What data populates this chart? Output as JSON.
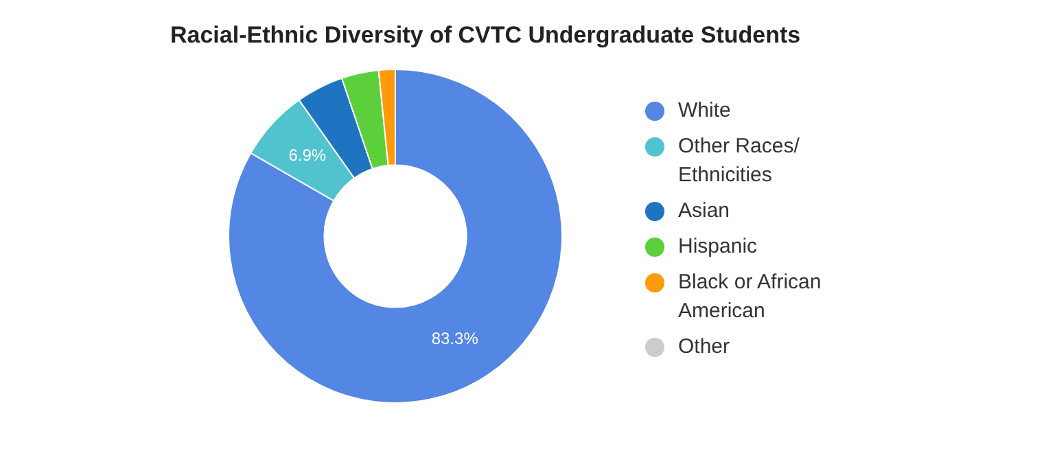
{
  "chart_data": {
    "type": "donut",
    "title": "Racial-Ethnic Diversity of CVTC Undergraduate Students",
    "categories": [
      "White",
      "Other Races/ Ethnicities",
      "Asian",
      "Hispanic",
      "Black or African American",
      "Other"
    ],
    "values": [
      83.3,
      6.9,
      4.6,
      3.6,
      1.6,
      0
    ],
    "colors": [
      "#5486e3",
      "#50c3cf",
      "#1f74c2",
      "#5ccf3b",
      "#ff9a0a",
      "#cccccc"
    ],
    "value_labels": [
      "83.3%",
      "6.9%",
      null,
      null,
      null,
      null
    ],
    "legend": "right"
  }
}
